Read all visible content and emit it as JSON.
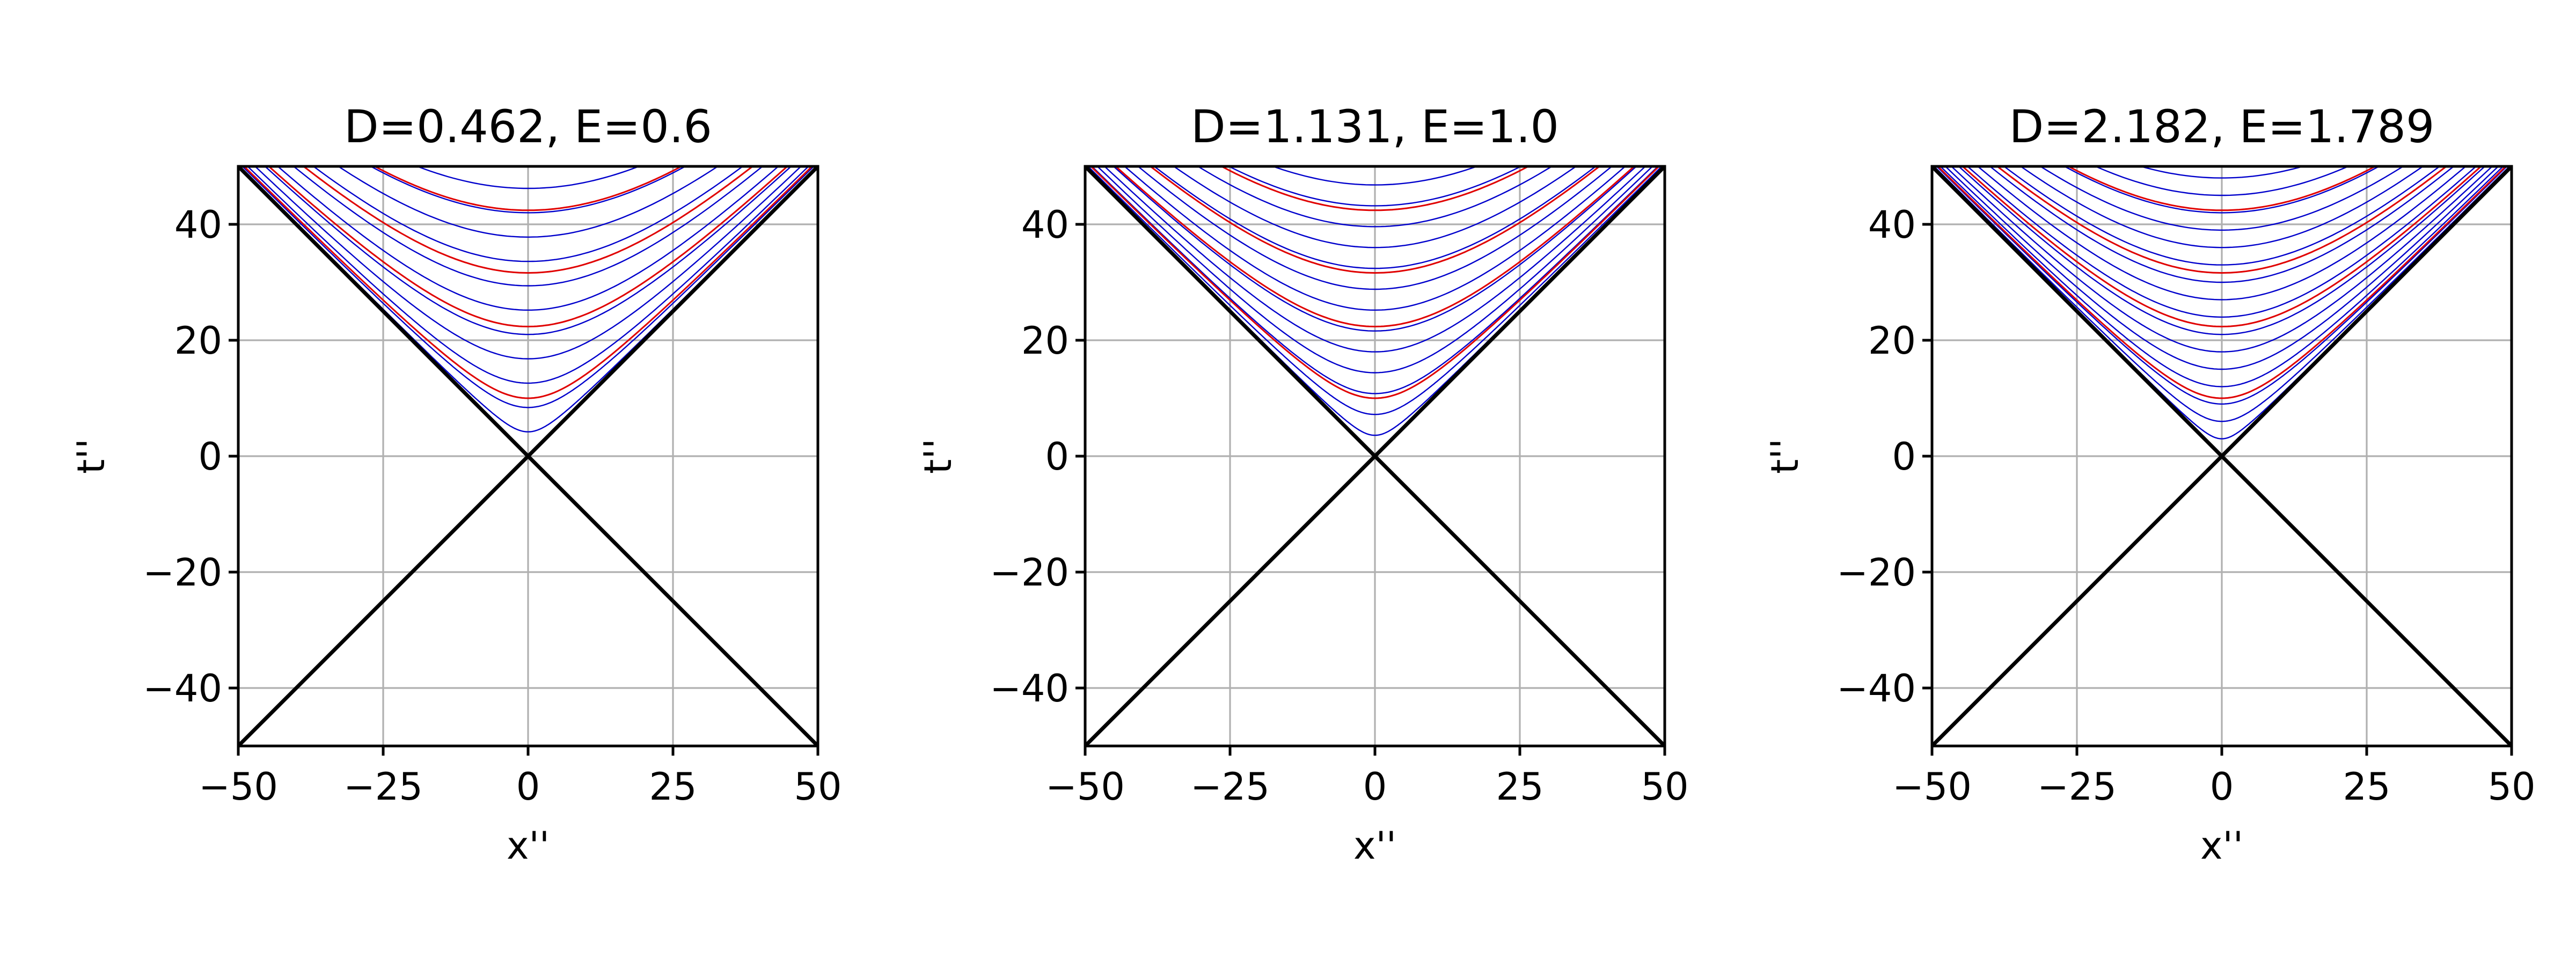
{
  "figure": {
    "colors": {
      "blue": "#0000cc",
      "red": "#e00000",
      "cone": "#000000",
      "grid": "#b0b0b0"
    }
  },
  "chart_data": [
    {
      "type": "line",
      "title": "D=0.462, E=0.6",
      "xlabel": "x''",
      "ylabel": "t''",
      "xlim": [
        -50,
        50
      ],
      "ylim": [
        -50,
        50
      ],
      "xticks": [
        "−50",
        "−25",
        "0",
        "25",
        "50"
      ],
      "yticks": [
        "−40",
        "−20",
        "0",
        "20",
        "40"
      ],
      "grid": true,
      "legend": "none",
      "params": {
        "D": 0.462,
        "E": 0.6
      },
      "series": [
        {
          "color": "blue",
          "description": "family of boosted hyperbolae in the upper wedge"
        },
        {
          "color": "red",
          "description": "hyperbolae t'' = sqrt(x''^2 + c)"
        },
        {
          "color": "black",
          "description": "light cone t'' = ±x''"
        }
      ]
    },
    {
      "type": "line",
      "title": "D=1.131, E=1.0",
      "xlabel": "x''",
      "ylabel": "t''",
      "xlim": [
        -50,
        50
      ],
      "ylim": [
        -50,
        50
      ],
      "xticks": [
        "−50",
        "−25",
        "0",
        "25",
        "50"
      ],
      "yticks": [
        "−40",
        "−20",
        "0",
        "20",
        "40"
      ],
      "grid": true,
      "legend": "none",
      "params": {
        "D": 1.131,
        "E": 1.0
      },
      "series": [
        {
          "color": "blue",
          "description": "family of boosted hyperbolae in the upper wedge"
        },
        {
          "color": "red",
          "description": "hyperbolae t'' = sqrt(x''^2 + c)"
        },
        {
          "color": "black",
          "description": "light cone t'' = ±x''"
        }
      ]
    },
    {
      "type": "line",
      "title": "D=2.182, E=1.789",
      "xlabel": "x''",
      "ylabel": "t''",
      "xlim": [
        -50,
        50
      ],
      "ylim": [
        -50,
        50
      ],
      "xticks": [
        "−50",
        "−25",
        "0",
        "25",
        "50"
      ],
      "yticks": [
        "−40",
        "−20",
        "0",
        "20",
        "40"
      ],
      "grid": true,
      "legend": "none",
      "params": {
        "D": 2.182,
        "E": 1.789
      },
      "series": [
        {
          "color": "blue",
          "description": "family of boosted hyperbolae in the upper wedge"
        },
        {
          "color": "red",
          "description": "hyperbolae t'' = sqrt(x''^2 + c)"
        },
        {
          "color": "black",
          "description": "light cone t'' = ±x''"
        }
      ]
    }
  ]
}
